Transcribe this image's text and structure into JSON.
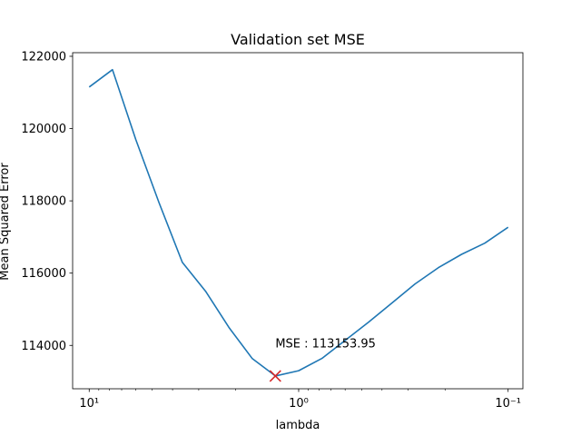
{
  "chart_data": {
    "type": "line",
    "title": "Validation set MSE",
    "xlabel": "lambda",
    "ylabel": "Mean Squared Error",
    "x_scale": "log",
    "x_reversed": true,
    "xlim": [
      12,
      0.085
    ],
    "ylim": [
      112800,
      122100
    ],
    "x_ticks": [
      {
        "value": 10,
        "label": "10¹"
      },
      {
        "value": 1,
        "label": "10⁰"
      },
      {
        "value": 0.1,
        "label": "10⁻¹"
      }
    ],
    "y_ticks": [
      114000,
      116000,
      118000,
      120000,
      122000
    ],
    "grid": false,
    "series": [
      {
        "color": "#1f77b4",
        "x": [
          10,
          7.743,
          5.995,
          4.642,
          3.594,
          2.783,
          2.154,
          1.668,
          1.292,
          1.0,
          0.7743,
          0.5995,
          0.4642,
          0.3594,
          0.2783,
          0.2154,
          0.1668,
          0.1292,
          0.1
        ],
        "y": [
          121150,
          121630,
          119700,
          117950,
          116300,
          115500,
          114500,
          113640,
          113153.95,
          113300,
          113640,
          114140,
          114640,
          115170,
          115700,
          116150,
          116520,
          116830,
          117270
        ]
      }
    ],
    "marker": {
      "x": 1.292,
      "y": 113153.95,
      "symbol": "x",
      "color": "#d62728"
    },
    "annotation": {
      "text": "MSE : 113153.95",
      "x": 1.292,
      "y": 114050
    }
  }
}
